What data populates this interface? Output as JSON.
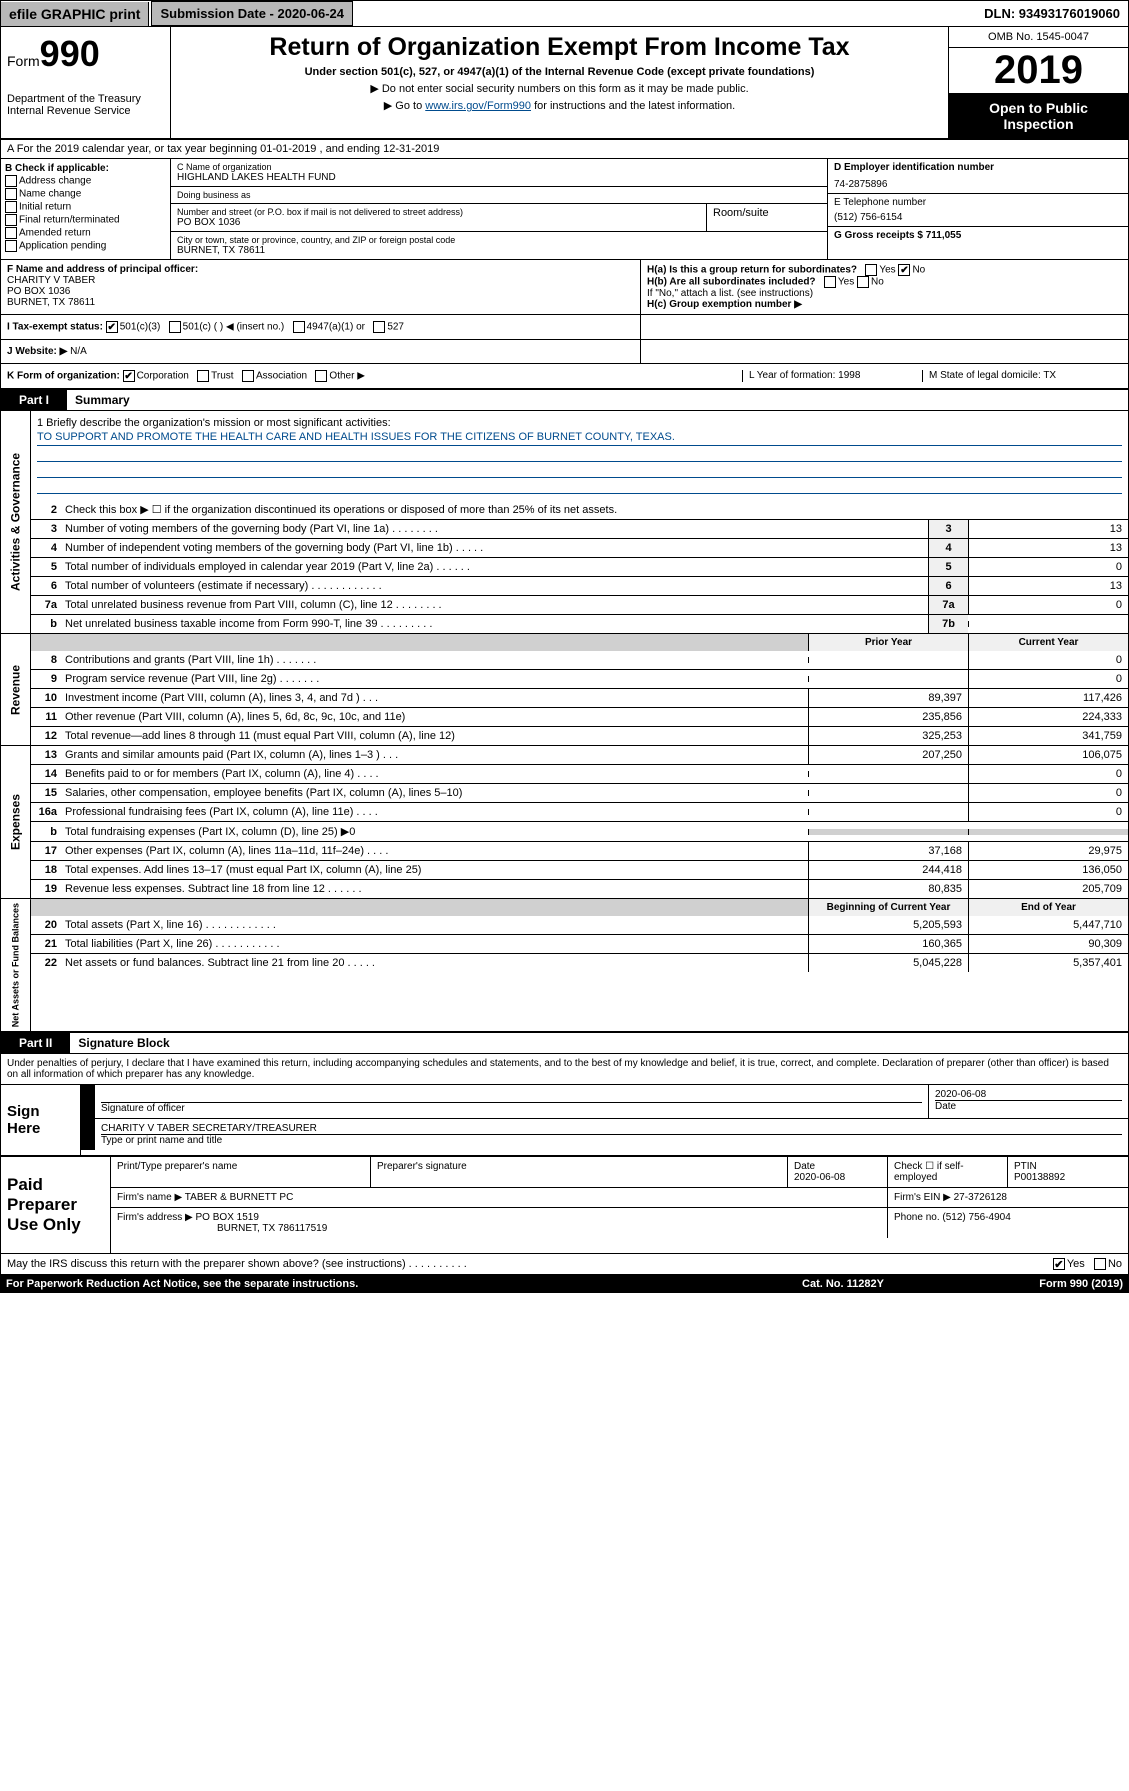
{
  "topbar": {
    "efile": "efile GRAPHIC print",
    "subdate_label": "Submission Date - 2020-06-24",
    "dln": "DLN: 93493176019060"
  },
  "header": {
    "form_prefix": "Form",
    "form_number": "990",
    "dept": "Department of the Treasury Internal Revenue Service",
    "title": "Return of Organization Exempt From Income Tax",
    "subtitle": "Under section 501(c), 527, or 4947(a)(1) of the Internal Revenue Code (except private foundations)",
    "note1": "▶ Do not enter social security numbers on this form as it may be made public.",
    "note2_pre": "▶ Go to ",
    "note2_link": "www.irs.gov/Form990",
    "note2_post": " for instructions and the latest information.",
    "omb": "OMB No. 1545-0047",
    "year": "2019",
    "inspection": "Open to Public Inspection"
  },
  "row_a": "A For the 2019 calendar year, or tax year beginning 01-01-2019    , and ending 12-31-2019",
  "box_b": {
    "title": "B Check if applicable:",
    "opts": [
      "Address change",
      "Name change",
      "Initial return",
      "Final return/terminated",
      "Amended return",
      "Application pending"
    ]
  },
  "box_c": {
    "name_lbl": "C Name of organization",
    "name": "HIGHLAND LAKES HEALTH FUND",
    "dba_lbl": "Doing business as",
    "dba": "",
    "addr_lbl": "Number and street (or P.O. box if mail is not delivered to street address)",
    "room_lbl": "Room/suite",
    "addr": "PO BOX 1036",
    "city_lbl": "City or town, state or province, country, and ZIP or foreign postal code",
    "city": "BURNET, TX  78611"
  },
  "box_d": {
    "lbl": "D Employer identification number",
    "val": "74-2875896"
  },
  "box_e": {
    "lbl": "E Telephone number",
    "val": "(512) 756-6154"
  },
  "box_g": {
    "lbl": "G Gross receipts $ 711,055"
  },
  "box_f": {
    "lbl": "F  Name and address of principal officer:",
    "name": "CHARITY V TABER",
    "addr1": "PO BOX 1036",
    "addr2": "BURNET, TX  78611"
  },
  "box_h": {
    "a": "H(a)  Is this a group return for subordinates?",
    "a_no": "No",
    "b": "H(b)  Are all subordinates included?",
    "b_note": "If \"No,\" attach a list. (see instructions)",
    "c": "H(c)  Group exemption number ▶"
  },
  "tax_status": {
    "lbl": "I    Tax-exempt status:",
    "o1": "501(c)(3)",
    "o2": "501(c) (  ) ◀ (insert no.)",
    "o3": "4947(a)(1) or",
    "o4": "527"
  },
  "website": {
    "lbl": "J   Website: ▶",
    "val": "N/A"
  },
  "row_k": {
    "lbl": "K Form of organization:",
    "opts": [
      "Corporation",
      "Trust",
      "Association",
      "Other ▶"
    ],
    "l": "L Year of formation: 1998",
    "m": "M State of legal domicile: TX"
  },
  "part1": {
    "tab": "Part I",
    "title": "Summary"
  },
  "mission": {
    "lbl": "1  Briefly describe the organization's mission or most significant activities:",
    "text": "TO SUPPORT AND PROMOTE THE HEALTH CARE AND HEALTH ISSUES FOR THE CITIZENS OF BURNET COUNTY, TEXAS."
  },
  "governance": [
    {
      "n": "2",
      "d": "Check this box ▶ ☐  if the organization discontinued its operations or disposed of more than 25% of its net assets.",
      "c": "",
      "v": ""
    },
    {
      "n": "3",
      "d": "Number of voting members of the governing body (Part VI, line 1a)  .   .   .   .   .   .   .   .",
      "c": "3",
      "v": "13"
    },
    {
      "n": "4",
      "d": "Number of independent voting members of the governing body (Part VI, line 1b)  .   .   .   .   .",
      "c": "4",
      "v": "13"
    },
    {
      "n": "5",
      "d": "Total number of individuals employed in calendar year 2019 (Part V, line 2a)  .   .   .   .   .   .",
      "c": "5",
      "v": "0"
    },
    {
      "n": "6",
      "d": "Total number of volunteers (estimate if necessary)  .   .   .   .   .   .   .   .   .   .   .   .",
      "c": "6",
      "v": "13"
    },
    {
      "n": "7a",
      "d": "Total unrelated business revenue from Part VIII, column (C), line 12  .   .   .   .   .   .   .   .",
      "c": "7a",
      "v": "0"
    },
    {
      "n": "b",
      "d": "Net unrelated business taxable income from Form 990-T, line 39  .   .   .   .   .   .   .   .   .",
      "c": "7b",
      "v": ""
    }
  ],
  "yr_headers": {
    "prior": "Prior Year",
    "current": "Current Year"
  },
  "revenue": [
    {
      "n": "8",
      "d": "Contributions and grants (Part VIII, line 1h)  .   .   .   .   .   .   .",
      "p": "",
      "c": "0"
    },
    {
      "n": "9",
      "d": "Program service revenue (Part VIII, line 2g)  .   .   .   .   .   .   .",
      "p": "",
      "c": "0"
    },
    {
      "n": "10",
      "d": "Investment income (Part VIII, column (A), lines 3, 4, and 7d )  .   .   .",
      "p": "89,397",
      "c": "117,426"
    },
    {
      "n": "11",
      "d": "Other revenue (Part VIII, column (A), lines 5, 6d, 8c, 9c, 10c, and 11e)",
      "p": "235,856",
      "c": "224,333"
    },
    {
      "n": "12",
      "d": "Total revenue—add lines 8 through 11 (must equal Part VIII, column (A), line 12)",
      "p": "325,253",
      "c": "341,759"
    }
  ],
  "expenses": [
    {
      "n": "13",
      "d": "Grants and similar amounts paid (Part IX, column (A), lines 1–3 )   .   .   .",
      "p": "207,250",
      "c": "106,075"
    },
    {
      "n": "14",
      "d": "Benefits paid to or for members (Part IX, column (A), line 4)   .   .   .   .",
      "p": "",
      "c": "0"
    },
    {
      "n": "15",
      "d": "Salaries, other compensation, employee benefits (Part IX, column (A), lines 5–10)",
      "p": "",
      "c": "0"
    },
    {
      "n": "16a",
      "d": "Professional fundraising fees (Part IX, column (A), line 11e)   .   .   .   .",
      "p": "",
      "c": "0"
    },
    {
      "n": "b",
      "d": "Total fundraising expenses (Part IX, column (D), line 25) ▶0",
      "p": "grey",
      "c": "grey"
    },
    {
      "n": "17",
      "d": "Other expenses (Part IX, column (A), lines 11a–11d, 11f–24e)   .   .   .   .",
      "p": "37,168",
      "c": "29,975"
    },
    {
      "n": "18",
      "d": "Total expenses. Add lines 13–17 (must equal Part IX, column (A), line 25)",
      "p": "244,418",
      "c": "136,050"
    },
    {
      "n": "19",
      "d": "Revenue less expenses. Subtract line 18 from line 12   .   .   .   .   .   .",
      "p": "80,835",
      "c": "205,709"
    }
  ],
  "net_headers": {
    "begin": "Beginning of Current Year",
    "end": "End of Year"
  },
  "netassets": [
    {
      "n": "20",
      "d": "Total assets (Part X, line 16)   .   .   .   .   .   .   .   .   .   .   .   .",
      "p": "5,205,593",
      "c": "5,447,710"
    },
    {
      "n": "21",
      "d": "Total liabilities (Part X, line 26)   .   .   .   .   .   .   .   .   .   .   .",
      "p": "160,365",
      "c": "90,309"
    },
    {
      "n": "22",
      "d": "Net assets or fund balances. Subtract line 21 from line 20   .   .   .   .   .",
      "p": "5,045,228",
      "c": "5,357,401"
    }
  ],
  "vlabels": {
    "gov": "Activities & Governance",
    "rev": "Revenue",
    "exp": "Expenses",
    "net": "Net Assets or Fund Balances"
  },
  "part2": {
    "tab": "Part II",
    "title": "Signature Block"
  },
  "perjury": "Under penalties of perjury, I declare that I have examined this return, including accompanying schedules and statements, and to the best of my knowledge and belief, it is true, correct, and complete. Declaration of preparer (other than officer) is based on all information of which preparer has any knowledge.",
  "sign": {
    "here": "Sign Here",
    "sig_lbl": "Signature of officer",
    "date": "2020-06-08",
    "date_lbl": "Date",
    "name": "CHARITY V TABER  SECRETARY/TREASURER",
    "name_lbl": "Type or print name and title"
  },
  "paid": {
    "title": "Paid Preparer Use Only",
    "h1": "Print/Type preparer's name",
    "h2": "Preparer's signature",
    "h3": "Date",
    "h3v": "2020-06-08",
    "h4": "Check ☐ if self-employed",
    "h5": "PTIN",
    "h5v": "P00138892",
    "firm_lbl": "Firm's name     ▶",
    "firm": "TABER & BURNETT PC",
    "ein_lbl": "Firm's EIN ▶",
    "ein": "27-3726128",
    "addr_lbl": "Firm's address ▶",
    "addr1": "PO BOX 1519",
    "addr2": "BURNET, TX  786117519",
    "phone_lbl": "Phone no.",
    "phone": "(512) 756-4904"
  },
  "discuss": "May the IRS discuss this return with the preparer shown above? (see instructions)   .   .   .   .   .   .   .   .   .   .",
  "discuss_yes": "Yes",
  "discuss_no": "No",
  "footer": {
    "left": "For Paperwork Reduction Act Notice, see the separate instructions.",
    "mid": "Cat. No. 11282Y",
    "right": "Form 990 (2019)"
  }
}
